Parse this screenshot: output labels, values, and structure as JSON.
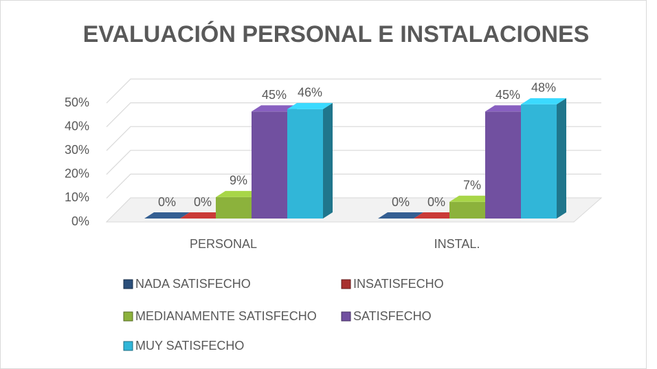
{
  "chart_data": {
    "type": "bar3d",
    "title": "EVALUACIÓN PERSONAL E INSTALACIONES",
    "categories": [
      "PERSONAL",
      "INSTAL."
    ],
    "series": [
      {
        "name": "NADA SATISFECHO",
        "color": "#2b4f7a",
        "values": [
          0,
          0
        ],
        "value_labels": [
          "0%",
          "0%"
        ]
      },
      {
        "name": "INSATISFECHO",
        "color": "#a8302e",
        "values": [
          0,
          0
        ],
        "value_labels": [
          "0%",
          "0%"
        ]
      },
      {
        "name": "MEDIANAMENTE SATISFECHO",
        "color": "#8cb23c",
        "values": [
          9,
          7
        ],
        "value_labels": [
          "9%",
          "7%"
        ]
      },
      {
        "name": "SATISFECHO",
        "color": "#7150a0",
        "values": [
          45,
          45
        ],
        "value_labels": [
          "45%",
          "45%"
        ]
      },
      {
        "name": "MUY SATISFECHO",
        "color": "#31b6d8",
        "values": [
          46,
          48
        ],
        "value_labels": [
          "46%",
          "48%"
        ]
      }
    ],
    "ylim": [
      0,
      50
    ],
    "yticks": [
      {
        "value": 0,
        "label": "0%"
      },
      {
        "value": 10,
        "label": "10%"
      },
      {
        "value": 20,
        "label": "20%"
      },
      {
        "value": 30,
        "label": "30%"
      },
      {
        "value": 40,
        "label": "40%"
      },
      {
        "value": 50,
        "label": "50%"
      }
    ],
    "grid": true,
    "legend": "bottom"
  }
}
